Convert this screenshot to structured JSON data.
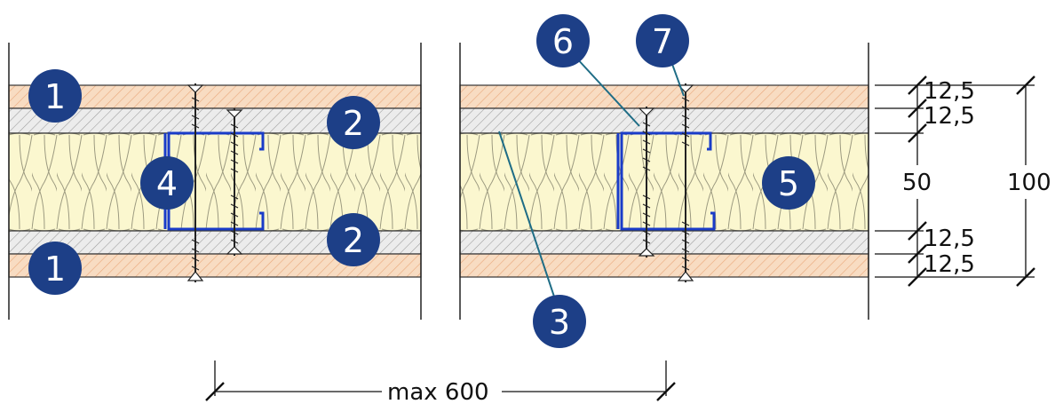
{
  "markers": [
    {
      "id": "1a",
      "label": "1"
    },
    {
      "id": "1b",
      "label": "1"
    },
    {
      "id": "2a",
      "label": "2"
    },
    {
      "id": "2b",
      "label": "2"
    },
    {
      "id": "3",
      "label": "3"
    },
    {
      "id": "4",
      "label": "4"
    },
    {
      "id": "5",
      "label": "5"
    },
    {
      "id": "6",
      "label": "6"
    },
    {
      "id": "7",
      "label": "7"
    }
  ],
  "dimensions": {
    "layer_top_1": "12,5",
    "layer_top_2": "12,5",
    "insulation": "50",
    "layer_bottom_1": "12,5",
    "layer_bottom_2": "12,5",
    "total": "100",
    "spacing": "max 600"
  },
  "colors": {
    "marker_fill": "#1d3f87",
    "outer_board": "#f6d6b8",
    "inner_board": "#e7e7e7",
    "insulation": "#fbf7cf",
    "profile": "#1a3cc8",
    "leader": "#1f6d86",
    "outline": "#222222"
  }
}
